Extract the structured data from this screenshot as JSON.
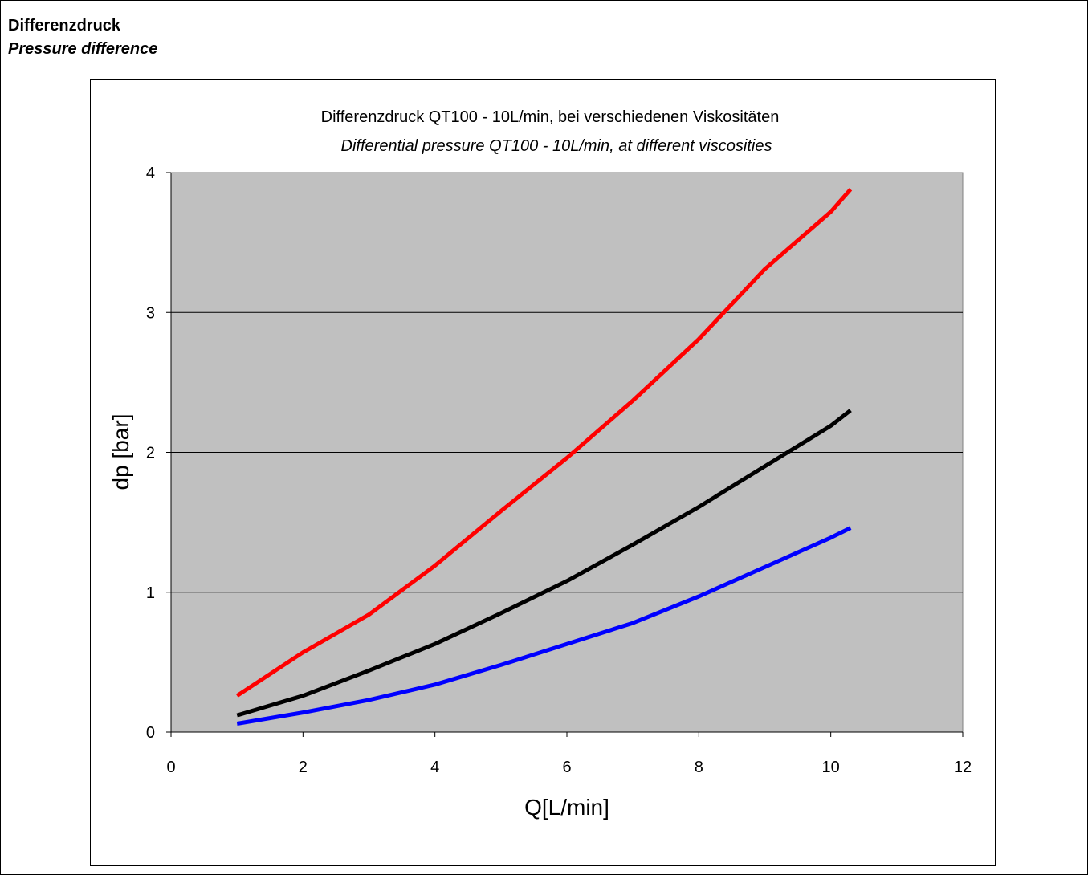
{
  "section": {
    "title_de": "Differenzdruck",
    "title_en": "Pressure difference"
  },
  "chart_data": {
    "type": "line",
    "title": "Differenzdruck QT100 - 10L/min, bei verschiedenen Viskositäten",
    "subtitle": "Differential pressure QT100 - 10L/min, at different viscosities",
    "xlabel": "Q[L/min]",
    "ylabel": "dp [bar]",
    "xlim": [
      0,
      12
    ],
    "ylim": [
      0,
      4
    ],
    "xticks": [
      "0",
      "2",
      "4",
      "6",
      "8",
      "10",
      "12"
    ],
    "yticks": [
      "0",
      "1",
      "2",
      "3",
      "4"
    ],
    "grid": "horizontal",
    "legend": "none",
    "plot_background": "#c0c0c0",
    "series": [
      {
        "color": "#ff0000",
        "x": [
          1,
          2,
          3,
          4,
          5,
          6,
          7,
          8,
          9,
          10,
          10.3
        ],
        "y": [
          0.26,
          0.57,
          0.84,
          1.19,
          1.58,
          1.96,
          2.37,
          2.81,
          3.31,
          3.72,
          3.88
        ]
      },
      {
        "color": "#000000",
        "x": [
          1,
          2,
          3,
          4,
          5,
          6,
          7,
          8,
          9,
          10,
          10.3
        ],
        "y": [
          0.12,
          0.26,
          0.44,
          0.63,
          0.85,
          1.08,
          1.34,
          1.61,
          1.9,
          2.19,
          2.3
        ]
      },
      {
        "color": "#0000ff",
        "x": [
          1,
          2,
          3,
          4,
          5,
          6,
          7,
          8,
          9,
          10,
          10.3
        ],
        "y": [
          0.06,
          0.14,
          0.23,
          0.34,
          0.48,
          0.63,
          0.78,
          0.97,
          1.18,
          1.39,
          1.46
        ]
      }
    ]
  }
}
